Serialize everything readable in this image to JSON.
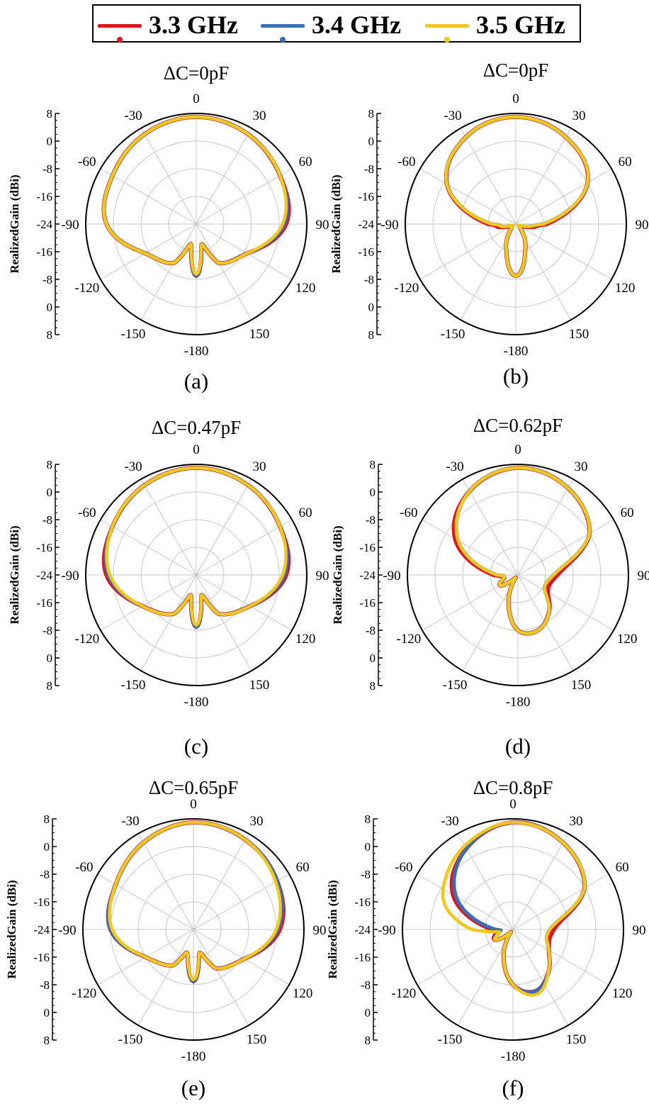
{
  "legend": {
    "series": [
      {
        "name": "3.3 GHz",
        "color": "#e0141e"
      },
      {
        "name": "3.4 GHz",
        "color": "#3a6fb5"
      },
      {
        "name": "3.5 GHz",
        "color": "#f2c81e"
      }
    ]
  },
  "chart_data": [
    {
      "type": "polar",
      "title": "ΔC=0pF",
      "caption": "(a)",
      "ylabel": "RealizedGain (dBi)",
      "radial_ticks": [
        "8",
        "0",
        "-8",
        "-16",
        "-24",
        "-16",
        "-8",
        "0",
        "8"
      ],
      "angle_labels": [
        "0",
        "30",
        "60",
        "90",
        "120",
        "150",
        "-180",
        "-150",
        "-120",
        "-90",
        "-60",
        "-30"
      ],
      "r_range": [
        -24,
        8
      ],
      "series": [
        {
          "name": "3.3 GHz",
          "angles": [
            0,
            30,
            60,
            90,
            120,
            150,
            165,
            180,
            195,
            210,
            240,
            270,
            300,
            330
          ],
          "gains": [
            7,
            6,
            4,
            2,
            -7,
            -11,
            -18,
            -9,
            -18,
            -11,
            -7,
            2,
            4,
            6
          ]
        },
        {
          "name": "3.4 GHz",
          "angles": [
            0,
            30,
            60,
            90,
            120,
            150,
            165,
            180,
            195,
            210,
            240,
            270,
            300,
            330
          ],
          "gains": [
            7,
            6,
            4,
            1.5,
            -7,
            -11,
            -18,
            -9,
            -18,
            -11,
            -7,
            2,
            4,
            6
          ]
        },
        {
          "name": "3.5 GHz",
          "angles": [
            0,
            30,
            60,
            90,
            120,
            150,
            165,
            180,
            195,
            210,
            240,
            270,
            300,
            330
          ],
          "gains": [
            7,
            6,
            4,
            1,
            -7,
            -11,
            -18,
            -9.5,
            -18,
            -11,
            -7,
            2,
            4,
            6
          ]
        }
      ]
    },
    {
      "type": "polar",
      "title": "ΔC=0pF",
      "caption": "(b)",
      "ylabel": "RealizedGain (dBi)",
      "radial_ticks": [
        "8",
        "0",
        "-8",
        "-16",
        "-24",
        "-16",
        "-8",
        "0",
        "8"
      ],
      "angle_labels": [
        "0",
        "30",
        "60",
        "90",
        "120",
        "150",
        "-180",
        "-150",
        "-120",
        "-90",
        "-60",
        "-30"
      ],
      "r_range": [
        -24,
        8
      ],
      "series": [
        {
          "name": "3.3 GHz",
          "angles": [
            0,
            30,
            60,
            90,
            100,
            110,
            135,
            160,
            180,
            200,
            225,
            250,
            260,
            270,
            300,
            330
          ],
          "gains": [
            7,
            5,
            0,
            -15,
            -19,
            -22,
            -22,
            -16,
            -9,
            -16,
            -22,
            -22,
            -19,
            -16,
            -1,
            5
          ]
        },
        {
          "name": "3.4 GHz",
          "angles": [
            0,
            30,
            60,
            90,
            100,
            110,
            135,
            160,
            180,
            200,
            225,
            250,
            260,
            270,
            300,
            330
          ],
          "gains": [
            7,
            5,
            0,
            -16,
            -20,
            -22,
            -22,
            -16,
            -9,
            -16,
            -22,
            -22,
            -20,
            -17,
            -1,
            5
          ]
        },
        {
          "name": "3.5 GHz",
          "angles": [
            0,
            30,
            60,
            90,
            100,
            110,
            135,
            160,
            180,
            200,
            225,
            250,
            260,
            270,
            300,
            330
          ],
          "gains": [
            7,
            5,
            0,
            -16,
            -20,
            -23,
            -22,
            -16,
            -9,
            -16,
            -22,
            -23,
            -20,
            -17,
            -1,
            5
          ]
        }
      ]
    },
    {
      "type": "polar",
      "title": "ΔC=0.47pF",
      "caption": "(c)",
      "ylabel": "RealizedGain (dBi)",
      "radial_ticks": [
        "8",
        "0",
        "-8",
        "-16",
        "-24",
        "-16",
        "-8",
        "0",
        "8"
      ],
      "angle_labels": [
        "0",
        "30",
        "60",
        "90",
        "120",
        "150",
        "-180",
        "-150",
        "-120",
        "-90",
        "-60",
        "-30"
      ],
      "r_range": [
        -24,
        8
      ],
      "series": [
        {
          "name": "3.3 GHz",
          "angles": [
            0,
            30,
            60,
            90,
            120,
            150,
            165,
            180,
            195,
            210,
            240,
            270,
            300,
            330
          ],
          "gains": [
            7,
            6,
            4,
            2,
            -6,
            -11,
            -18,
            -9,
            -18,
            -11,
            -6,
            2,
            4,
            6
          ]
        },
        {
          "name": "3.4 GHz",
          "angles": [
            0,
            30,
            60,
            90,
            120,
            150,
            165,
            180,
            195,
            210,
            240,
            270,
            300,
            330
          ],
          "gains": [
            7,
            6,
            4,
            1.5,
            -6,
            -11,
            -18,
            -9,
            -18,
            -11,
            -6,
            1.5,
            4,
            6
          ]
        },
        {
          "name": "3.5 GHz",
          "angles": [
            0,
            30,
            60,
            90,
            120,
            150,
            165,
            180,
            195,
            210,
            240,
            270,
            300,
            330
          ],
          "gains": [
            7,
            6,
            4,
            1,
            -6,
            -11,
            -18,
            -9.5,
            -18,
            -11,
            -6,
            1,
            4,
            6
          ]
        }
      ]
    },
    {
      "type": "polar",
      "title": "ΔC=0.62pF",
      "caption": "(d)",
      "ylabel": "RealizedGain (dBi)",
      "radial_ticks": [
        "8",
        "0",
        "-8",
        "-16",
        "-24",
        "-16",
        "-8",
        "0",
        "8"
      ],
      "angle_labels": [
        "0",
        "30",
        "60",
        "90",
        "120",
        "150",
        "-180",
        "-150",
        "-120",
        "-90",
        "-60",
        "-30"
      ],
      "r_range": [
        -24,
        8
      ],
      "series": [
        {
          "name": "3.3 GHz",
          "angles": [
            0,
            30,
            60,
            80,
            100,
            120,
            140,
            160,
            180,
            200,
            220,
            240,
            260,
            270,
            300,
            330
          ],
          "gains": [
            7,
            5,
            0,
            -10,
            -14,
            -14,
            -10,
            -7,
            -8,
            -16,
            -23,
            -18,
            -20,
            -17,
            -3,
            4
          ]
        },
        {
          "name": "3.4 GHz",
          "angles": [
            0,
            30,
            60,
            80,
            100,
            120,
            140,
            160,
            180,
            200,
            220,
            240,
            260,
            270,
            300,
            330
          ],
          "gains": [
            7,
            5,
            0,
            -11,
            -15,
            -15,
            -10,
            -7,
            -8,
            -16,
            -23,
            -18,
            -20,
            -18,
            -4,
            4
          ]
        },
        {
          "name": "3.5 GHz",
          "angles": [
            0,
            30,
            60,
            80,
            100,
            120,
            140,
            160,
            180,
            200,
            220,
            240,
            260,
            270,
            300,
            330
          ],
          "gains": [
            7,
            5,
            0,
            -11,
            -15,
            -15,
            -10,
            -7,
            -8,
            -16,
            -23,
            -18,
            -20,
            -18,
            -4,
            4
          ]
        }
      ]
    },
    {
      "type": "polar",
      "title": "ΔC=0.65pF",
      "caption": "(e)",
      "ylabel": "RealizedGain (dBi)",
      "radial_ticks": [
        "8",
        "0",
        "-8",
        "-16",
        "-24",
        "-16",
        "-8",
        "0",
        "8"
      ],
      "angle_labels": [
        "0",
        "30",
        "60",
        "90",
        "120",
        "150",
        "-180",
        "-150",
        "-120",
        "-90",
        "-60",
        "-30"
      ],
      "r_range": [
        -24,
        8
      ],
      "series": [
        {
          "name": "3.3 GHz",
          "angles": [
            0,
            30,
            60,
            90,
            120,
            150,
            165,
            180,
            195,
            210,
            240,
            270,
            300,
            330
          ],
          "gains": [
            7,
            6,
            4,
            1,
            -7,
            -11,
            -17,
            -9,
            -17,
            -12,
            -8,
            0,
            2,
            5
          ]
        },
        {
          "name": "3.4 GHz",
          "angles": [
            0,
            30,
            60,
            90,
            120,
            150,
            165,
            180,
            195,
            210,
            240,
            270,
            300,
            330
          ],
          "gains": [
            7,
            6,
            4,
            0.5,
            -7,
            -11,
            -17,
            -9,
            -17,
            -12,
            -8,
            0,
            2,
            5
          ]
        },
        {
          "name": "3.5 GHz",
          "angles": [
            0,
            30,
            60,
            90,
            120,
            150,
            165,
            180,
            195,
            210,
            240,
            270,
            300,
            330
          ],
          "gains": [
            7,
            6,
            3.5,
            0,
            -7,
            -11,
            -17,
            -9.5,
            -17,
            -12,
            -8,
            -0.5,
            2,
            5
          ]
        }
      ]
    },
    {
      "type": "polar",
      "title": "ΔC=0.8pF",
      "caption": "(f)",
      "ylabel": "RealizedGain (dBi)",
      "radial_ticks": [
        "8",
        "0",
        "-8",
        "-16",
        "-24",
        "-16",
        "-8",
        "0",
        "8"
      ],
      "angle_labels": [
        "0",
        "30",
        "60",
        "90",
        "120",
        "150",
        "-180",
        "-150",
        "-120",
        "-90",
        "-60",
        "-30"
      ],
      "r_range": [
        -24,
        8
      ],
      "series": [
        {
          "name": "3.3 GHz",
          "angles": [
            0,
            30,
            60,
            80,
            100,
            120,
            140,
            160,
            180,
            200,
            220,
            240,
            260,
            270,
            300,
            330
          ],
          "gains": [
            7,
            5,
            0,
            -10,
            -13,
            -12,
            -8,
            -5,
            -8,
            -16,
            -23,
            -18,
            -19,
            -18,
            -4,
            3
          ]
        },
        {
          "name": "3.4 GHz",
          "angles": [
            0,
            30,
            60,
            80,
            100,
            120,
            140,
            160,
            180,
            200,
            220,
            240,
            260,
            270,
            300,
            330
          ],
          "gains": [
            7,
            5,
            0,
            -11,
            -14,
            -12,
            -8,
            -5,
            -8,
            -16,
            -23,
            -18,
            -20,
            -19,
            -5,
            3
          ]
        },
        {
          "name": "3.5 GHz",
          "angles": [
            0,
            30,
            60,
            80,
            100,
            120,
            140,
            160,
            180,
            200,
            220,
            240,
            260,
            270,
            290,
            310,
            330
          ],
          "gains": [
            7,
            5,
            0,
            -11,
            -14,
            -12,
            -8,
            -4,
            -8,
            -16,
            -23,
            -18,
            -20,
            -12,
            -3,
            1,
            4
          ]
        }
      ]
    }
  ]
}
